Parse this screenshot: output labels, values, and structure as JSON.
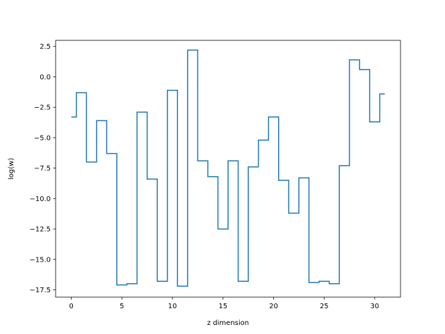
{
  "chart_data": {
    "type": "line",
    "drawstyle": "steps-mid",
    "title": "",
    "xlabel": "z dimension",
    "ylabel": "log(w)",
    "xlim": [
      -1.55,
      32.55
    ],
    "ylim": [
      -18.1,
      3.0
    ],
    "xticks": [
      0,
      5,
      10,
      15,
      20,
      25,
      30
    ],
    "xtick_labels": [
      "0",
      "5",
      "10",
      "15",
      "20",
      "25",
      "30"
    ],
    "yticks": [
      2.5,
      0.0,
      -2.5,
      -5.0,
      -7.5,
      -10.0,
      -12.5,
      -15.0,
      -17.5
    ],
    "ytick_labels": [
      "2.5",
      "0.0",
      "−2.5",
      "−5.0",
      "−7.5",
      "−10.0",
      "−12.5",
      "−15.0",
      "−17.5"
    ],
    "grid": false,
    "series": [
      {
        "color": "#1f77b4",
        "x": [
          0,
          1,
          2,
          3,
          4,
          5,
          6,
          7,
          8,
          9,
          10,
          11,
          12,
          13,
          14,
          15,
          16,
          17,
          18,
          19,
          20,
          21,
          22,
          23,
          24,
          25,
          26,
          27,
          28,
          29,
          30,
          31
        ],
        "values": [
          -3.3,
          -1.3,
          -7.0,
          -3.6,
          -6.3,
          -17.1,
          -17.0,
          -2.9,
          -8.4,
          -16.8,
          -1.1,
          -17.2,
          2.2,
          -6.9,
          -8.2,
          -12.5,
          -6.9,
          -16.8,
          -7.4,
          -5.2,
          -3.3,
          -8.5,
          -11.2,
          -8.3,
          -16.9,
          -16.8,
          -17.0,
          -7.3,
          1.4,
          0.6,
          -3.7,
          -1.4
        ]
      }
    ]
  }
}
